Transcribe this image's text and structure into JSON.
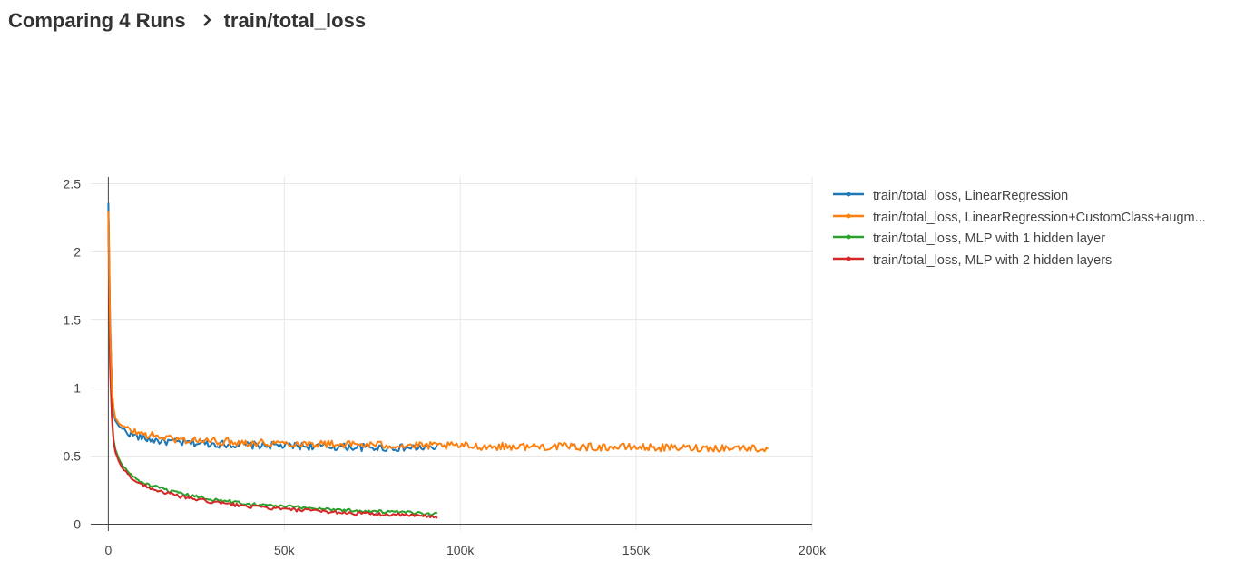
{
  "header": {
    "title": "Comparing 4 Runs",
    "separator_icon": "chevron-right-icon",
    "subtitle": "train/total_loss"
  },
  "chart_data": {
    "type": "line",
    "title": "",
    "xlabel": "",
    "ylabel": "",
    "xlim": [
      -5000,
      200000
    ],
    "ylim": [
      -0.05,
      2.55
    ],
    "xticks": [
      0,
      50000,
      100000,
      150000,
      200000
    ],
    "xtick_labels": [
      "0",
      "50k",
      "100k",
      "150k",
      "200k"
    ],
    "yticks": [
      0,
      0.5,
      1,
      1.5,
      2,
      2.5
    ],
    "ytick_labels": [
      "0",
      "0.5",
      "1",
      "1.5",
      "2",
      "2.5"
    ],
    "grid": true,
    "legend_position": "right",
    "series": [
      {
        "name": "train/total_loss, LinearRegression",
        "color": "#1f77b4",
        "x": [
          0,
          500,
          1000,
          1500,
          2000,
          3000,
          4000,
          5000,
          7500,
          10000,
          15000,
          20000,
          30000,
          40000,
          50000,
          60000,
          70000,
          80000,
          90000,
          93500
        ],
        "y": [
          2.36,
          1.5,
          1.0,
          0.82,
          0.76,
          0.72,
          0.7,
          0.68,
          0.65,
          0.63,
          0.61,
          0.6,
          0.59,
          0.58,
          0.575,
          0.57,
          0.565,
          0.56,
          0.56,
          0.56
        ]
      },
      {
        "name": "train/total_loss, LinearRegression+CustomClass+augm...",
        "color": "#ff7f0e",
        "x": [
          0,
          500,
          1000,
          1500,
          2000,
          3000,
          4000,
          5000,
          7500,
          10000,
          15000,
          20000,
          30000,
          40000,
          50000,
          60000,
          70000,
          80000,
          90000,
          100000,
          110000,
          120000,
          130000,
          140000,
          150000,
          160000,
          170000,
          180000,
          187500
        ],
        "y": [
          2.3,
          1.45,
          1.0,
          0.85,
          0.78,
          0.74,
          0.72,
          0.7,
          0.68,
          0.66,
          0.64,
          0.62,
          0.61,
          0.6,
          0.595,
          0.59,
          0.585,
          0.58,
          0.575,
          0.575,
          0.57,
          0.57,
          0.57,
          0.565,
          0.565,
          0.56,
          0.56,
          0.56,
          0.555
        ]
      },
      {
        "name": "train/total_loss, MLP with 1 hidden layer",
        "color": "#2ca02c",
        "x": [
          0,
          500,
          1000,
          1500,
          2000,
          3000,
          4000,
          5000,
          7500,
          10000,
          15000,
          20000,
          30000,
          40000,
          50000,
          60000,
          70000,
          80000,
          90000,
          93500
        ],
        "y": [
          2.3,
          1.2,
          0.8,
          0.62,
          0.55,
          0.48,
          0.43,
          0.4,
          0.34,
          0.3,
          0.26,
          0.225,
          0.18,
          0.15,
          0.13,
          0.115,
          0.1,
          0.09,
          0.08,
          0.075
        ]
      },
      {
        "name": "train/total_loss, MLP with 2 hidden layers",
        "color": "#d62728",
        "x": [
          0,
          500,
          1000,
          1500,
          2000,
          3000,
          4000,
          5000,
          7500,
          10000,
          15000,
          20000,
          30000,
          40000,
          50000,
          60000,
          70000,
          80000,
          90000,
          93500
        ],
        "y": [
          2.3,
          1.15,
          0.78,
          0.6,
          0.53,
          0.46,
          0.41,
          0.38,
          0.32,
          0.285,
          0.24,
          0.205,
          0.16,
          0.13,
          0.11,
          0.095,
          0.08,
          0.07,
          0.06,
          0.055
        ]
      }
    ]
  }
}
